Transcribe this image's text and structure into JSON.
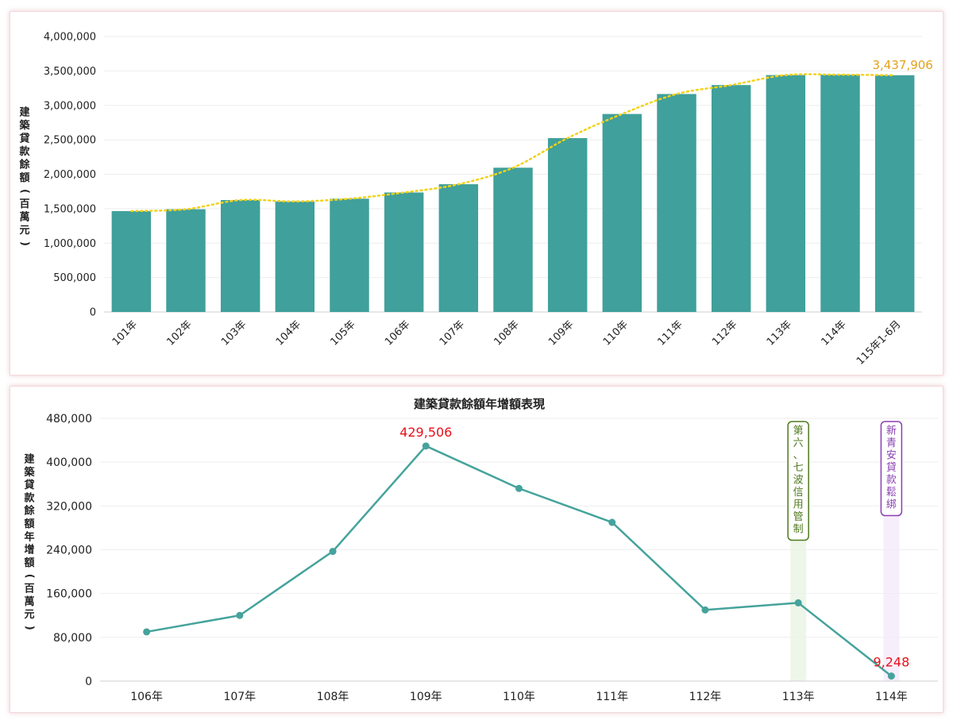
{
  "chart_data": [
    {
      "type": "bar",
      "title": "",
      "ylabel": "建築貸款餘額（百萬元）",
      "ylim": [
        0,
        4000000
      ],
      "yticks": [
        0,
        500000,
        1000000,
        1500000,
        2000000,
        2500000,
        3000000,
        3500000,
        4000000
      ],
      "categories": [
        "101年",
        "102年",
        "103年",
        "104年",
        "105年",
        "106年",
        "107年",
        "108年",
        "109年",
        "110年",
        "111年",
        "112年",
        "113年",
        "114年",
        "115年1-6月"
      ],
      "values": [
        1465000,
        1492000,
        1625000,
        1605000,
        1645000,
        1735000,
        1855000,
        2095000,
        2525000,
        2875000,
        3165000,
        3295000,
        3440000,
        3445000,
        3437906
      ],
      "trendline": {
        "style": "dotted",
        "color": "#f2d21b"
      },
      "annotations": [
        {
          "category": "115年1-6月",
          "label": "3,437,906",
          "color": "#e2a21a"
        }
      ],
      "bar_color": "#40a09b",
      "grid": true
    },
    {
      "type": "line",
      "title": "建築貸款餘額年增額表現",
      "ylabel": "建築貸款餘額年增額（百萬元）",
      "ylim": [
        0,
        480000
      ],
      "yticks": [
        0,
        80000,
        160000,
        240000,
        320000,
        400000,
        480000
      ],
      "categories": [
        "106年",
        "107年",
        "108年",
        "109年",
        "110年",
        "111年",
        "112年",
        "113年",
        "114年"
      ],
      "values": [
        90000,
        120000,
        237000,
        429506,
        352000,
        290000,
        130000,
        143000,
        9248
      ],
      "line_color": "#45a39c",
      "grid": true,
      "point_labels": [
        {
          "category": "109年",
          "label": "429,506",
          "color": "#e8101a"
        },
        {
          "category": "114年",
          "label": "9,248",
          "color": "#e8101a"
        }
      ],
      "highlights": [
        {
          "category": "113年",
          "label": "第六、七波信用管制",
          "border": "#4f7a1e",
          "text": "#4f7a1e",
          "band": "#eef6e9"
        },
        {
          "category": "114年",
          "label": "新青安貸款鬆綁",
          "border": "#8a3fb3",
          "text": "#8a3fb3",
          "band": "#f7eefc"
        }
      ]
    }
  ]
}
